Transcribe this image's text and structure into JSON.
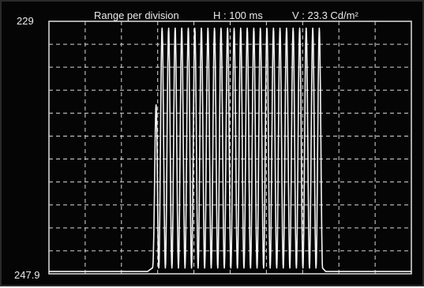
{
  "header": {
    "label": "Range per division",
    "h_range": "H : 100 ms",
    "v_range": "V : 23.3 Cd/m²"
  },
  "y_axis": {
    "max_label": "229",
    "min_label": "247.9"
  },
  "colors": {
    "background": "#050505",
    "grid": "#d8d8d8",
    "frame": "#e0e0e0",
    "trace": "#f4f4f4",
    "text": "#eaeaea"
  },
  "grid": {
    "divisions_x": 10,
    "divisions_y": 11,
    "style": "dashed"
  },
  "trace": {
    "time_per_division_ms": 100,
    "oscillation_start_div": 2.85,
    "oscillation_end_div": 7.55,
    "cycles": 26,
    "baseline_level_div": 0.1,
    "low_level_div": 0.25,
    "high_level_div": 10.7
  }
}
